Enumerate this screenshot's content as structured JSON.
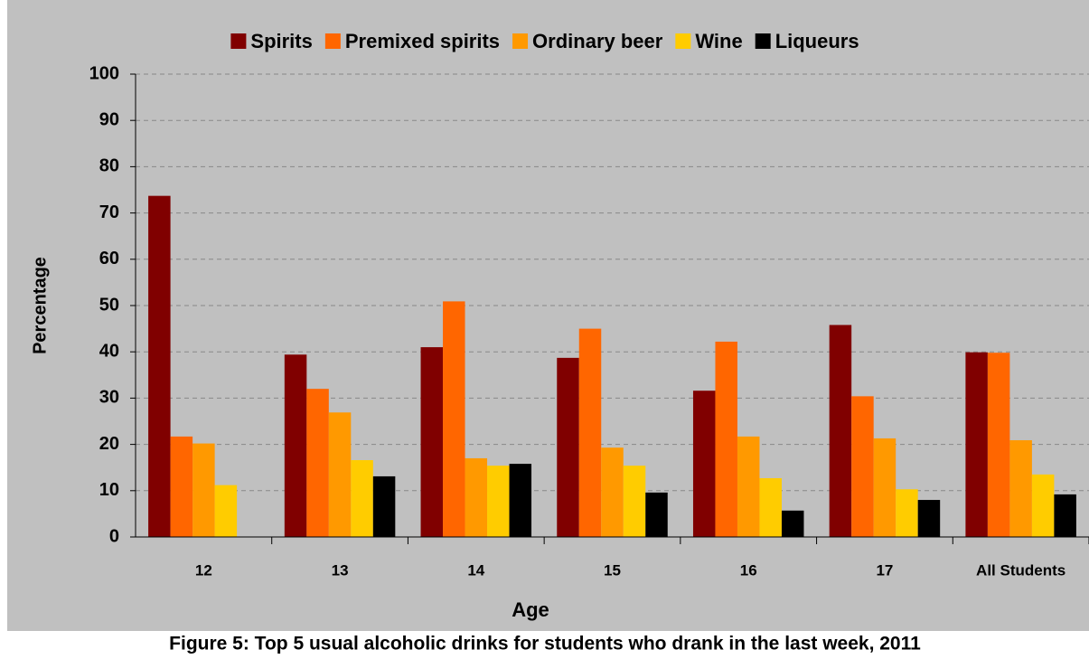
{
  "chart_data": {
    "type": "bar",
    "caption": "Figure 5: Top 5 usual alcoholic drinks for students who drank in the last week, 2011",
    "x_label": "Age",
    "y_label": "Percentage",
    "categories": [
      "12",
      "13",
      "14",
      "15",
      "16",
      "17",
      "All Students"
    ],
    "series": [
      {
        "name": "Spirits",
        "color": "#800000",
        "values": [
          73.7,
          39.4,
          41,
          38.7,
          31.6,
          45.8,
          39.9
        ]
      },
      {
        "name": "Premixed spirits",
        "color": "#ff6600",
        "values": [
          21.7,
          32,
          50.9,
          45,
          42.2,
          30.4,
          39.8
        ]
      },
      {
        "name": "Ordinary beer",
        "color": "#ff9900",
        "values": [
          20.2,
          26.9,
          17,
          19.3,
          21.7,
          21.3,
          20.9
        ]
      },
      {
        "name": "Wine",
        "color": "#ffcc00",
        "values": [
          11.2,
          16.6,
          15.4,
          15.4,
          12.7,
          10.3,
          13.5
        ]
      },
      {
        "name": "Liqueurs",
        "color": "#000000",
        "values": [
          null,
          13.1,
          15.8,
          9.6,
          5.7,
          8,
          9.2
        ]
      }
    ],
    "ylim": [
      0,
      100
    ],
    "yticks": [
      0,
      10,
      20,
      30,
      40,
      50,
      60,
      70,
      80,
      90,
      100
    ],
    "grid": true,
    "legend": "top"
  }
}
